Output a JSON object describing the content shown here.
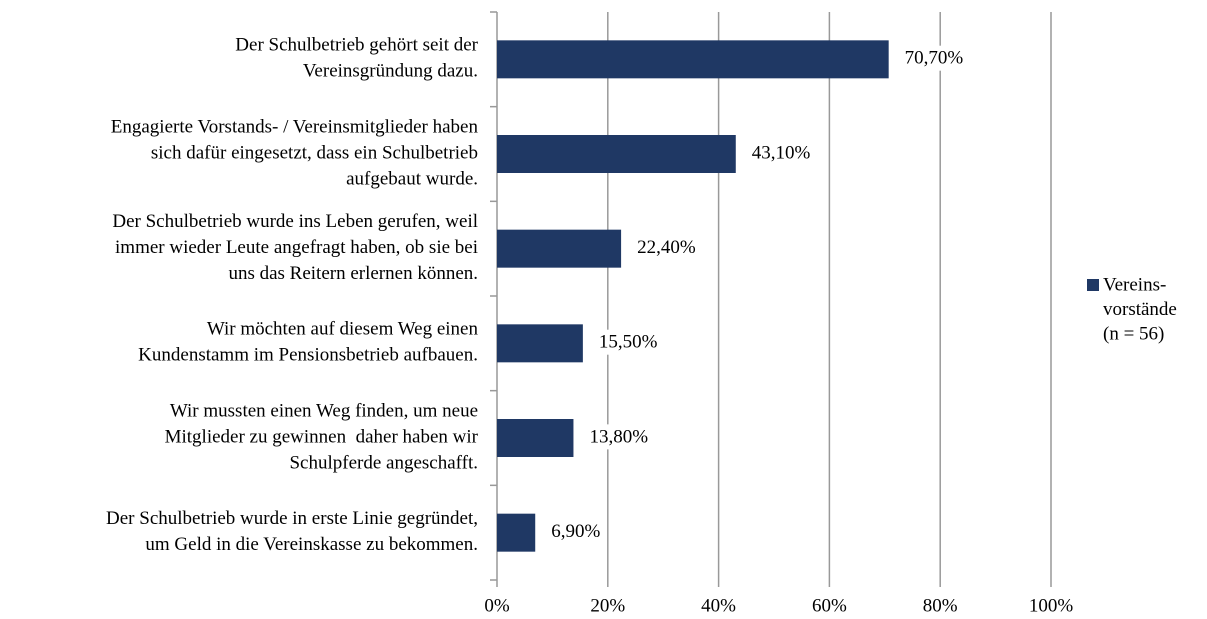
{
  "chart_data": {
    "type": "bar",
    "orientation": "horizontal",
    "categories": [
      [
        "Der Schulbetrieb gehört seit der",
        "Vereinsgründung dazu."
      ],
      [
        "Engagierte Vorstands- / Vereinsmitglieder haben",
        "sich dafür eingesetzt, dass ein Schulbetrieb",
        "aufgebaut wurde."
      ],
      [
        "Der Schulbetrieb wurde ins Leben gerufen, weil",
        "immer wieder Leute angefragt haben, ob sie bei",
        "uns das Reitern erlernen können."
      ],
      [
        "Wir möchten auf diesem Weg einen",
        "Kundenstamm im Pensionsbetrieb aufbauen."
      ],
      [
        "Wir mussten einen Weg finden, um neue",
        "Mitglieder zu gewinnen  daher haben wir",
        "Schulpferde angeschafft."
      ],
      [
        "Der Schulbetrieb wurde in erste Linie gegründet,",
        "um Geld in die Vereinskasse zu bekommen."
      ]
    ],
    "series": [
      {
        "name": [
          "Vereins-",
          "vorstände",
          "(n = 56)"
        ],
        "color": "#1f3864",
        "values": [
          70.7,
          43.1,
          22.4,
          15.5,
          13.8,
          6.9
        ],
        "value_labels": [
          "70,70%",
          "43,10%",
          "22,40%",
          "15,50%",
          "13,80%",
          "6,90%"
        ]
      }
    ],
    "xlim": [
      0,
      100
    ],
    "xticks": [
      {
        "value": 0,
        "label": "0%"
      },
      {
        "value": 20,
        "label": "20%"
      },
      {
        "value": 40,
        "label": "40%"
      },
      {
        "value": 60,
        "label": "60%"
      },
      {
        "value": 80,
        "label": "80%"
      },
      {
        "value": 100,
        "label": "100%"
      }
    ],
    "grid": true,
    "legend": "right"
  }
}
